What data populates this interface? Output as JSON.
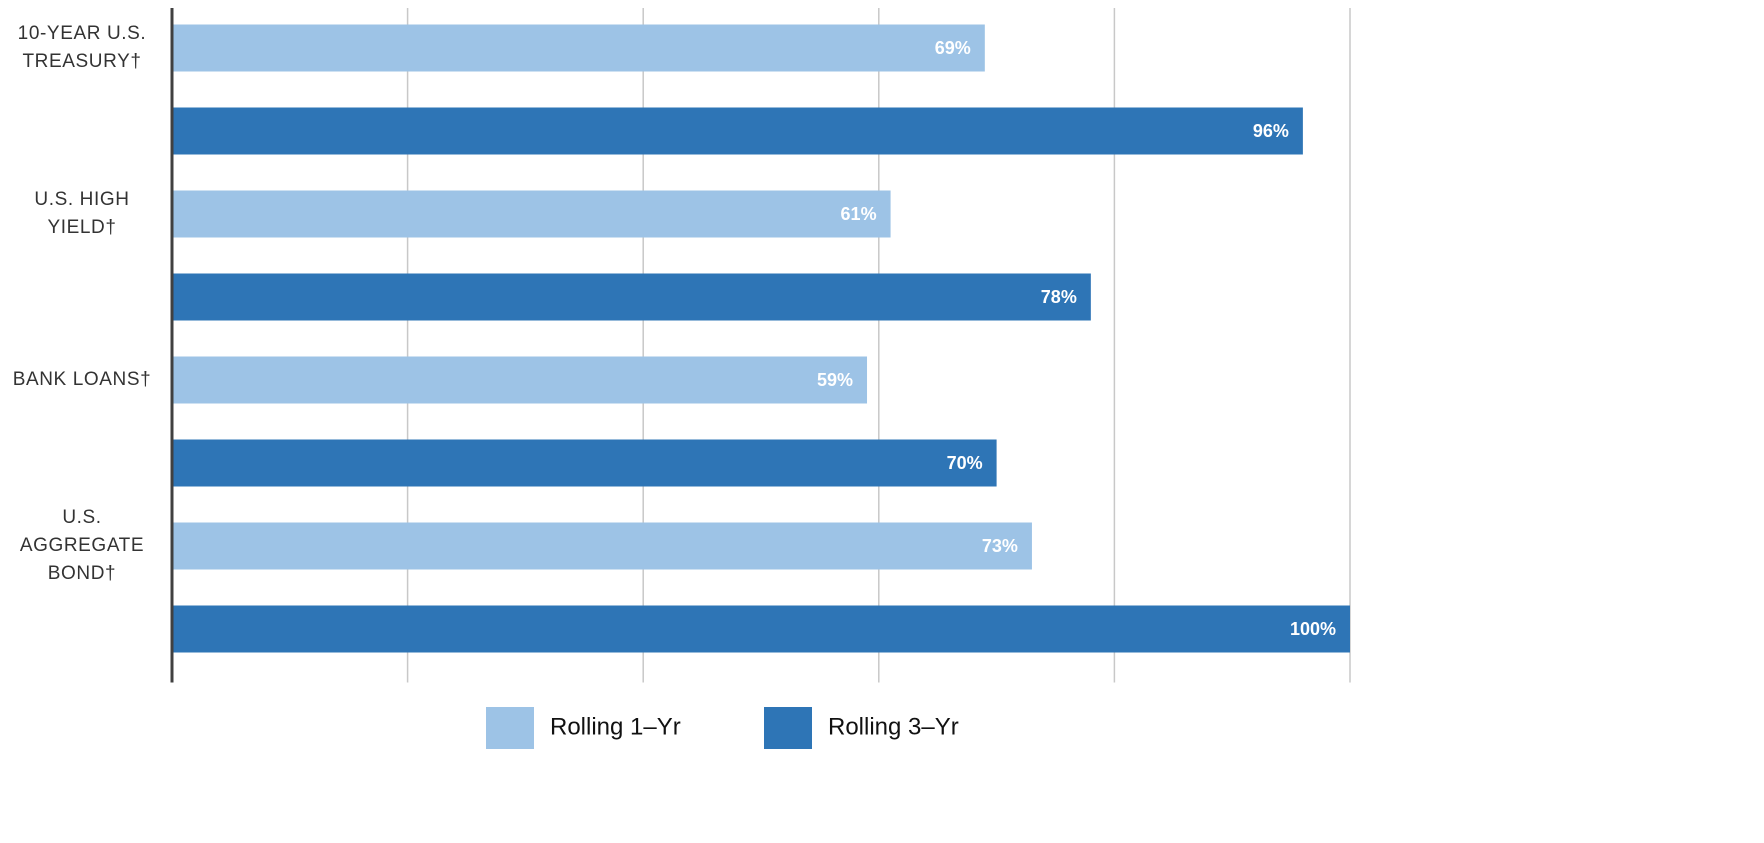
{
  "chart_data": {
    "type": "bar",
    "orientation": "horizontal",
    "categories": [
      "10-YEAR U.S. TREASURY†",
      "U.S. HIGH YIELD†",
      "BANK LOANS†",
      "U.S. AGGREGATE BOND†"
    ],
    "series": [
      {
        "name": "Rolling 1–Yr",
        "color": "#9dc3e6",
        "values": [
          69,
          61,
          59,
          73
        ],
        "value_labels": [
          "69%",
          "61%",
          "59%",
          "73%"
        ]
      },
      {
        "name": "Rolling 3–Yr",
        "color": "#2e75b6",
        "values": [
          96,
          78,
          70,
          100
        ],
        "value_labels": [
          "96%",
          "78%",
          "70%",
          "100%"
        ]
      }
    ],
    "xlim": [
      0,
      100
    ],
    "xticks": [
      0,
      20,
      40,
      60,
      80,
      100
    ],
    "grid": true,
    "legend": "bottom"
  }
}
